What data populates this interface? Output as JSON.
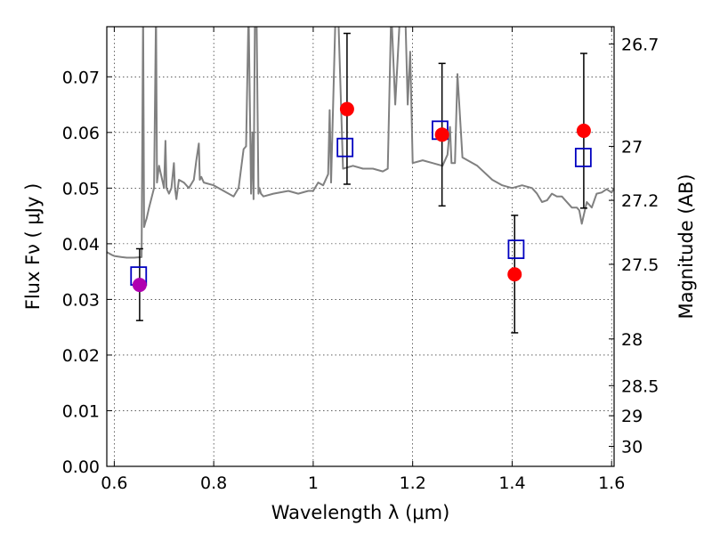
{
  "chart_data": {
    "type": "scatter",
    "xlabel": "Wavelength  λ (μm)",
    "ylabel": "Flux  Fν  ( μJy )",
    "y2label": "Magnitude (AB)",
    "xlim": [
      0.585,
      1.605
    ],
    "ylim": [
      0.0,
      0.079
    ],
    "x_ticks": [
      0.6,
      0.8,
      1.0,
      1.2,
      1.4,
      1.6
    ],
    "x_tick_labels": [
      "0.6",
      "0.8",
      "1",
      "1.2",
      "1.4",
      "1.6"
    ],
    "y_ticks": [
      0.0,
      0.01,
      0.02,
      0.03,
      0.04,
      0.05,
      0.06,
      0.07
    ],
    "y_tick_labels": [
      "0.00",
      "0.01",
      "0.02",
      "0.03",
      "0.04",
      "0.05",
      "0.06",
      "0.07"
    ],
    "magnitude_ticks": [
      {
        "label": "26.7",
        "flux": 0.0759
      },
      {
        "label": "27",
        "flux": 0.0575
      },
      {
        "label": "27.2",
        "flux": 0.0478
      },
      {
        "label": "27.5",
        "flux": 0.0363
      },
      {
        "label": "28",
        "flux": 0.0229
      },
      {
        "label": "28.5",
        "flux": 0.0145
      },
      {
        "label": "29",
        "flux": 0.0091
      },
      {
        "label": "30",
        "flux": 0.0036
      }
    ],
    "grid": true,
    "colors": {
      "model": "#808080",
      "observed": "#ff0000",
      "observed_first": "#b000b0",
      "errorbar": "#000000",
      "synthetic": "#0000c0"
    },
    "series": [
      {
        "type": "line",
        "x": [
          0.585,
          0.595,
          0.6,
          0.615,
          0.625,
          0.64,
          0.655,
          0.658,
          0.66,
          0.663,
          0.665,
          0.67,
          0.68,
          0.684,
          0.686,
          0.69,
          0.7,
          0.703,
          0.705,
          0.71,
          0.715,
          0.72,
          0.722,
          0.725,
          0.73,
          0.74,
          0.75,
          0.76,
          0.765,
          0.77,
          0.772,
          0.775,
          0.78,
          0.8,
          0.82,
          0.84,
          0.85,
          0.86,
          0.865,
          0.87,
          0.875,
          0.878,
          0.88,
          0.883,
          0.886,
          0.89,
          0.892,
          0.895,
          0.9,
          0.92,
          0.95,
          0.97,
          0.99,
          1.0,
          1.01,
          1.02,
          1.03,
          1.033,
          1.036,
          1.045,
          1.05,
          1.06,
          1.08,
          1.1,
          1.12,
          1.14,
          1.15,
          1.157,
          1.165,
          1.175,
          1.18,
          1.185,
          1.19,
          1.195,
          1.2,
          1.22,
          1.24,
          1.26,
          1.27,
          1.275,
          1.278,
          1.285,
          1.29,
          1.3,
          1.33,
          1.36,
          1.38,
          1.4,
          1.42,
          1.44,
          1.45,
          1.46,
          1.47,
          1.48,
          1.49,
          1.5,
          1.52,
          1.53,
          1.535,
          1.54,
          1.55,
          1.56,
          1.57,
          1.58,
          1.59,
          1.6,
          1.605
        ],
        "y": [
          0.0385,
          0.038,
          0.0378,
          0.0376,
          0.0375,
          0.0375,
          0.0376,
          0.082,
          0.043,
          0.044,
          0.0445,
          0.0465,
          0.05,
          0.082,
          0.051,
          0.054,
          0.05,
          0.0585,
          0.05,
          0.049,
          0.05,
          0.0545,
          0.05,
          0.048,
          0.0515,
          0.051,
          0.05,
          0.0515,
          0.055,
          0.058,
          0.0515,
          0.052,
          0.051,
          0.0505,
          0.0495,
          0.0485,
          0.05,
          0.057,
          0.0575,
          0.082,
          0.049,
          0.06,
          0.048,
          0.082,
          0.082,
          0.049,
          0.05,
          0.049,
          0.0485,
          0.049,
          0.0495,
          0.049,
          0.0495,
          0.0495,
          0.051,
          0.0505,
          0.0525,
          0.064,
          0.051,
          0.082,
          0.082,
          0.0535,
          0.054,
          0.0535,
          0.0535,
          0.053,
          0.0535,
          0.082,
          0.065,
          0.082,
          0.082,
          0.082,
          0.065,
          0.0745,
          0.0545,
          0.055,
          0.0545,
          0.054,
          0.056,
          0.061,
          0.0545,
          0.0545,
          0.0705,
          0.0555,
          0.054,
          0.0515,
          0.0505,
          0.05,
          0.0505,
          0.05,
          0.049,
          0.0475,
          0.0478,
          0.049,
          0.0485,
          0.0485,
          0.0465,
          0.0465,
          0.046,
          0.0436,
          0.0475,
          0.0465,
          0.049,
          0.0492,
          0.0498,
          0.0492,
          0.05
        ]
      },
      {
        "type": "errorbar",
        "x": [
          0.651,
          1.068,
          1.259,
          1.405,
          1.544
        ],
        "y": [
          0.0326,
          0.0642,
          0.0596,
          0.0345,
          0.0603
        ],
        "yerr_low": [
          0.0064,
          0.0135,
          0.0128,
          0.0105,
          0.0139
        ],
        "yerr_high": [
          0.0065,
          0.0136,
          0.0128,
          0.0106,
          0.0139
        ]
      },
      {
        "type": "squares",
        "x": [
          0.649,
          1.064,
          1.255,
          1.408,
          1.543
        ],
        "y": [
          0.0342,
          0.0573,
          0.0604,
          0.039,
          0.0555
        ]
      }
    ]
  }
}
